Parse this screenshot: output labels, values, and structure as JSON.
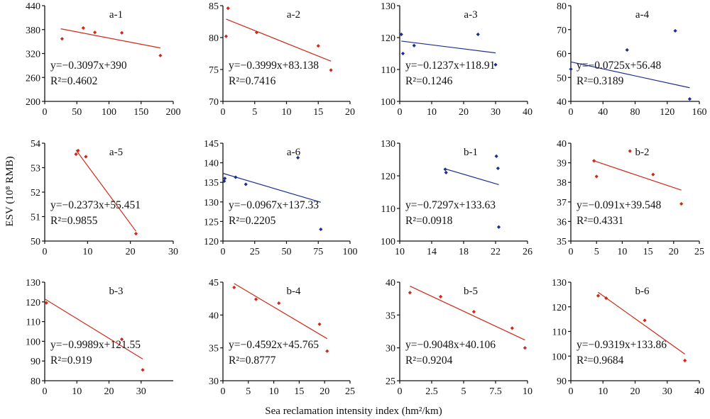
{
  "figure": {
    "ylabel": "ESV (10⁸ RMB)",
    "xlabel": "Sea reclamation intensity index (hm²/km)"
  },
  "colors": {
    "red": "#cc2a1a",
    "blue": "#1d2f8c",
    "axis": "#111111"
  },
  "chart_data": [
    {
      "panel": "a-1",
      "type": "scatter",
      "color": "red",
      "xlim": [
        0,
        200
      ],
      "ylim": [
        200,
        440
      ],
      "xticks": [
        0,
        50,
        100,
        150,
        200
      ],
      "yticks": [
        200,
        260,
        320,
        380,
        440
      ],
      "points": [
        [
          27,
          357
        ],
        [
          60,
          384
        ],
        [
          78,
          373
        ],
        [
          120,
          372
        ],
        [
          180,
          315
        ]
      ],
      "trend": [
        [
          25,
          382
        ],
        [
          180,
          334
        ]
      ],
      "eq_y": "y=−0.3097x+390",
      "eq_r": "R²=0.4602"
    },
    {
      "panel": "a-2",
      "type": "scatter",
      "color": "red",
      "xlim": [
        0,
        20
      ],
      "ylim": [
        70,
        85
      ],
      "xticks": [
        0,
        5,
        10,
        15,
        20
      ],
      "yticks": [
        70,
        75,
        80,
        85
      ],
      "points": [
        [
          0.5,
          80.2
        ],
        [
          0.8,
          84.6
        ],
        [
          5.3,
          80.8
        ],
        [
          15,
          78.7
        ],
        [
          17,
          74.9
        ]
      ],
      "trend": [
        [
          0.5,
          82.9
        ],
        [
          17,
          76.3
        ]
      ],
      "eq_y": "y=−0.3999x+83.138",
      "eq_r": "R²=0.7416"
    },
    {
      "panel": "a-3",
      "type": "scatter",
      "color": "blue",
      "xlim": [
        0,
        40
      ],
      "ylim": [
        100,
        130
      ],
      "xticks": [
        0,
        10,
        20,
        30,
        40
      ],
      "yticks": [
        100,
        110,
        120,
        130
      ],
      "points": [
        [
          0.5,
          121
        ],
        [
          1,
          115
        ],
        [
          4.5,
          117.5
        ],
        [
          24.5,
          121
        ],
        [
          30,
          111.5
        ]
      ],
      "trend": [
        [
          0.5,
          118.9
        ],
        [
          30,
          115.2
        ]
      ],
      "eq_y": "y=−0.1237x+118.91",
      "eq_r": "R²=0.1246"
    },
    {
      "panel": "a-4",
      "type": "scatter",
      "color": "blue",
      "xlim": [
        0,
        160
      ],
      "ylim": [
        40,
        80
      ],
      "xticks": [
        0,
        40,
        80,
        120,
        160
      ],
      "yticks": [
        40,
        50,
        60,
        70,
        80
      ],
      "points": [
        [
          0,
          53.5
        ],
        [
          70,
          61.5
        ],
        [
          130,
          69.5
        ],
        [
          148,
          41
        ]
      ],
      "trend": [
        [
          0,
          56.5
        ],
        [
          148,
          45.7
        ]
      ],
      "eq_y": "y=−0.0725x+56.48",
      "eq_r": "R²=0.3189"
    },
    {
      "panel": "a-5",
      "type": "scatter",
      "color": "red",
      "xlim": [
        0,
        30
      ],
      "ylim": [
        50,
        54
      ],
      "xticks": [
        0,
        10,
        20,
        30
      ],
      "yticks": [
        50,
        51,
        52,
        53,
        54
      ],
      "points": [
        [
          7.3,
          53.55
        ],
        [
          7.8,
          53.7
        ],
        [
          9.6,
          53.45
        ],
        [
          21.3,
          50.3
        ]
      ],
      "trend": [
        [
          7.3,
          53.72
        ],
        [
          21.3,
          50.4
        ]
      ],
      "eq_y": "y=−0.2373x+55.451",
      "eq_r": "R²=0.9855"
    },
    {
      "panel": "a-6",
      "type": "scatter",
      "color": "blue",
      "xlim": [
        0,
        100
      ],
      "ylim": [
        120,
        145
      ],
      "xticks": [
        0,
        25,
        50,
        75,
        100
      ],
      "yticks": [
        120,
        125,
        130,
        135,
        140,
        145
      ],
      "points": [
        [
          1,
          135.3
        ],
        [
          1.5,
          136
        ],
        [
          10,
          136.3
        ],
        [
          18,
          134.5
        ],
        [
          59,
          141.3
        ],
        [
          77,
          123
        ]
      ],
      "trend": [
        [
          0,
          137.3
        ],
        [
          77,
          129.9
        ]
      ],
      "eq_y": "y=−0.0967x+137.33",
      "eq_r": "R²=0.2205"
    },
    {
      "panel": "b-1",
      "type": "scatter",
      "color": "blue",
      "xlim": [
        10,
        26
      ],
      "ylim": [
        100,
        130
      ],
      "xticks": [
        10,
        14,
        18,
        22,
        26
      ],
      "yticks": [
        100,
        110,
        120,
        130
      ],
      "points": [
        [
          15.7,
          122
        ],
        [
          15.8,
          121
        ],
        [
          22.1,
          126
        ],
        [
          22.3,
          122.3
        ],
        [
          22.4,
          104.3
        ]
      ],
      "trend": [
        [
          15.6,
          122.2
        ],
        [
          22.4,
          117.3
        ]
      ],
      "eq_y": "y=−0.7297x+133.63",
      "eq_r": "R²=0.0918"
    },
    {
      "panel": "b-2",
      "type": "scatter",
      "color": "red",
      "xlim": [
        0,
        25
      ],
      "ylim": [
        35,
        40
      ],
      "xticks": [
        0,
        5,
        10,
        15,
        20,
        25
      ],
      "yticks": [
        35,
        36,
        37,
        38,
        39,
        40
      ],
      "points": [
        [
          4.5,
          39.1
        ],
        [
          5,
          38.3
        ],
        [
          11.5,
          39.6
        ],
        [
          16,
          38.4
        ],
        [
          21.5,
          36.9
        ]
      ],
      "trend": [
        [
          4.5,
          39.1
        ],
        [
          21.5,
          37.6
        ]
      ],
      "eq_y": "y=−0.091x+39.548",
      "eq_r": "R²=0.4331"
    },
    {
      "panel": "b-3",
      "type": "scatter",
      "color": "red",
      "xlim": [
        0,
        40
      ],
      "ylim": [
        80,
        130
      ],
      "xticks": [
        0,
        10,
        20,
        30
      ],
      "yticks": [
        80,
        90,
        100,
        110,
        120,
        130
      ],
      "points": [
        [
          0.5,
          119.5
        ],
        [
          24,
          101
        ],
        [
          30.5,
          85.5
        ]
      ],
      "trend": [
        [
          0,
          121.5
        ],
        [
          30.5,
          91
        ]
      ],
      "eq_y": "y=−0.9989x+121.55",
      "eq_r": "R²=0.919"
    },
    {
      "panel": "b-4",
      "type": "scatter",
      "color": "red",
      "xlim": [
        0,
        25
      ],
      "ylim": [
        30,
        45
      ],
      "xticks": [
        0,
        5,
        10,
        15,
        20,
        25
      ],
      "yticks": [
        30,
        35,
        40,
        45
      ],
      "points": [
        [
          2.2,
          44.2
        ],
        [
          6.5,
          42.4
        ],
        [
          11,
          41.8
        ],
        [
          19,
          38.6
        ],
        [
          20.5,
          34.5
        ]
      ],
      "trend": [
        [
          2.2,
          44.8
        ],
        [
          20.5,
          36.4
        ]
      ],
      "eq_y": "y=−0.4592x+45.765",
      "eq_r": "R²=0.8777"
    },
    {
      "panel": "b-5",
      "type": "scatter",
      "color": "red",
      "xlim": [
        0,
        10
      ],
      "ylim": [
        25,
        40
      ],
      "xticks": [
        0,
        2.5,
        5,
        7.5,
        10
      ],
      "yticks": [
        25,
        30,
        35,
        40
      ],
      "points": [
        [
          0.8,
          38.4
        ],
        [
          3.2,
          37.8
        ],
        [
          5.8,
          35.5
        ],
        [
          8.8,
          33
        ],
        [
          9.8,
          30
        ]
      ],
      "trend": [
        [
          0.8,
          39.4
        ],
        [
          9.8,
          31.2
        ]
      ],
      "eq_y": "y=−0.9048x+40.106",
      "eq_r": "R²=0.9204"
    },
    {
      "panel": "b-6",
      "type": "scatter",
      "color": "red",
      "xlim": [
        0,
        40
      ],
      "ylim": [
        90,
        130
      ],
      "xticks": [
        0,
        10,
        20,
        30,
        40
      ],
      "yticks": [
        90,
        100,
        110,
        120,
        130
      ],
      "points": [
        [
          8.5,
          124.5
        ],
        [
          11,
          123.5
        ],
        [
          23,
          114.5
        ],
        [
          35.5,
          98.2
        ]
      ],
      "trend": [
        [
          8.5,
          125.9
        ],
        [
          35.5,
          100.8
        ]
      ],
      "eq_y": "y=−0.9319x+133.86",
      "eq_r": "R²=0.9684"
    }
  ]
}
